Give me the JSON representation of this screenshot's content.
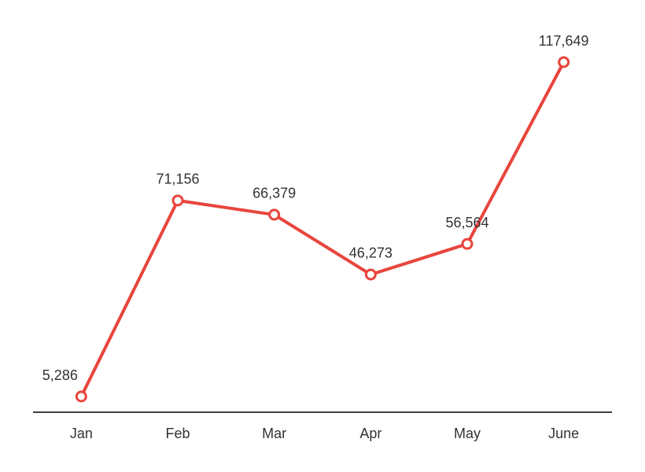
{
  "chart_data": {
    "type": "line",
    "categories": [
      "Jan",
      "Feb",
      "Mar",
      "Apr",
      "May",
      "June"
    ],
    "values": [
      5286,
      71156,
      66379,
      46273,
      56564,
      117649
    ],
    "value_labels": [
      "5,286",
      "71,156",
      "66,379",
      "46,273",
      "56,564",
      "117,649"
    ],
    "color": "#e8453c"
  }
}
